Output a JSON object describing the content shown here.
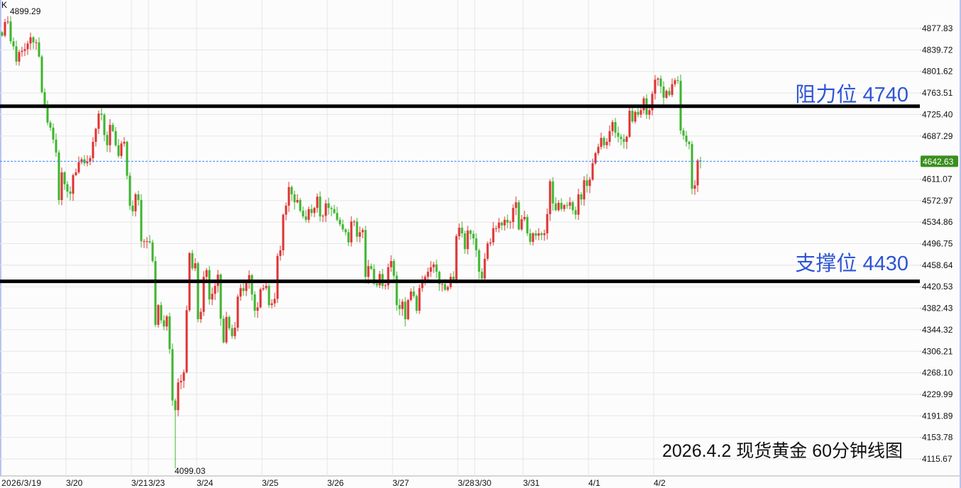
{
  "chart_data": {
    "type": "candlestick",
    "corner_label": "K",
    "title": "2026.4.2 现货黄金 60分钟线图",
    "colors": {
      "up": "#e03131",
      "down": "#3cb52d",
      "last_price_tag": "#3a8f1e",
      "last_price_line": "#3a86ff",
      "annotation": "#2f55d4"
    },
    "y_ticks": [
      4877.83,
      4839.72,
      4801.62,
      4763.51,
      4725.4,
      4687.29,
      4611.07,
      4572.97,
      4534.86,
      4496.75,
      4458.64,
      4420.53,
      4382.43,
      4344.32,
      4306.21,
      4268.1,
      4229.99,
      4191.89,
      4153.78,
      4115.67
    ],
    "y_tick_labels": [
      "4877.83",
      "4839.72",
      "4801.62",
      "4763.51",
      "4725.40",
      "4687.29",
      "4611.07",
      "4572.97",
      "4534.86",
      "4496.75",
      "4458.64",
      "4420.53",
      "4382.43",
      "4344.32",
      "4306.21",
      "4268.10",
      "4229.99",
      "4191.89",
      "4153.78",
      "4115.67"
    ],
    "x_ticks": [
      {
        "label": "2026/3/19",
        "index": 0
      },
      {
        "label": "3/20",
        "index": 23
      },
      {
        "label": "3/21",
        "index": 46
      },
      {
        "label": "3/23",
        "index": 52
      },
      {
        "label": "3/24",
        "index": 69
      },
      {
        "label": "3/25",
        "index": 92
      },
      {
        "label": "3/26",
        "index": 115
      },
      {
        "label": "3/27",
        "index": 138
      },
      {
        "label": "3/28",
        "index": 161
      },
      {
        "label": "3/30",
        "index": 167
      },
      {
        "label": "3/31",
        "index": 184
      },
      {
        "label": "4/1",
        "index": 207
      },
      {
        "label": "4/2",
        "index": 230
      }
    ],
    "first_open": 4871,
    "closes": [
      4865,
      4889,
      4890,
      4855,
      4846,
      4819,
      4836,
      4838,
      4841,
      4851,
      4862,
      4853,
      4853,
      4828,
      4765,
      4740,
      4711,
      4702,
      4681,
      4658,
      4574,
      4623,
      4602,
      4589,
      4585,
      4618,
      4623,
      4641,
      4646,
      4639,
      4642,
      4648,
      4677,
      4700,
      4727,
      4725,
      4689,
      4671,
      4707,
      4696,
      4671,
      4652,
      4674,
      4677,
      4617,
      4564,
      4554,
      4584,
      4574,
      4501,
      4501,
      4501,
      4499,
      4466,
      4353,
      4388,
      4361,
      4350,
      4368,
      4310,
      4219,
      4202,
      4251,
      4254,
      4269,
      4379,
      4480,
      4453,
      4462,
      4363,
      4376,
      4438,
      4450,
      4398,
      4408,
      4422,
      4442,
      4364,
      4322,
      4367,
      4347,
      4333,
      4348,
      4403,
      4418,
      4413,
      4427,
      4441,
      4407,
      4378,
      4384,
      4416,
      4418,
      4422,
      4388,
      4391,
      4399,
      4475,
      4485,
      4548,
      4564,
      4597,
      4584,
      4570,
      4574,
      4555,
      4545,
      4539,
      4558,
      4551,
      4560,
      4580,
      4545,
      4546,
      4568,
      4560,
      4558,
      4551,
      4539,
      4531,
      4522,
      4517,
      4499,
      4536,
      4536,
      4509,
      4517,
      4521,
      4438,
      4457,
      4452,
      4426,
      4423,
      4443,
      4422,
      4423,
      4455,
      4466,
      4440,
      4388,
      4381,
      4394,
      4363,
      4397,
      4412,
      4404,
      4378,
      4418,
      4430,
      4438,
      4447,
      4455,
      4460,
      4447,
      4425,
      4425,
      4415,
      4420,
      4438,
      4432,
      4510,
      4525,
      4515,
      4487,
      4520,
      4514,
      4506,
      4485,
      4447,
      4435,
      4470,
      4497,
      4499,
      4524,
      4524,
      4534,
      4529,
      4539,
      4534,
      4535,
      4560,
      4570,
      4522,
      4540,
      4544,
      4515,
      4500,
      4515,
      4511,
      4515,
      4512,
      4515,
      4549,
      4607,
      4568,
      4556,
      4569,
      4558,
      4565,
      4564,
      4570,
      4556,
      4548,
      4584,
      4575,
      4609,
      4599,
      4610,
      4639,
      4657,
      4668,
      4684,
      4671,
      4677,
      4696,
      4712,
      4693,
      4686,
      4682,
      4677,
      4686,
      4732,
      4713,
      4730,
      4725,
      4733,
      4754,
      4725,
      4733,
      4762,
      4787,
      4789,
      4775,
      4755,
      4767,
      4760,
      4779,
      4786,
      4785,
      4697,
      4688,
      4677,
      4673,
      4594,
      4600,
      4644,
      4642.63
    ],
    "high_label": {
      "value": "4899.29",
      "index": 3
    },
    "low_label": {
      "value": "4099.03",
      "index": 61
    },
    "last_price": {
      "value": 4642.63,
      "label": "4642.63"
    },
    "horizontal_lines": [
      {
        "value": 4740,
        "label": "阻力位 4740"
      },
      {
        "value": 4430,
        "label": "支撑位 4430"
      }
    ]
  }
}
